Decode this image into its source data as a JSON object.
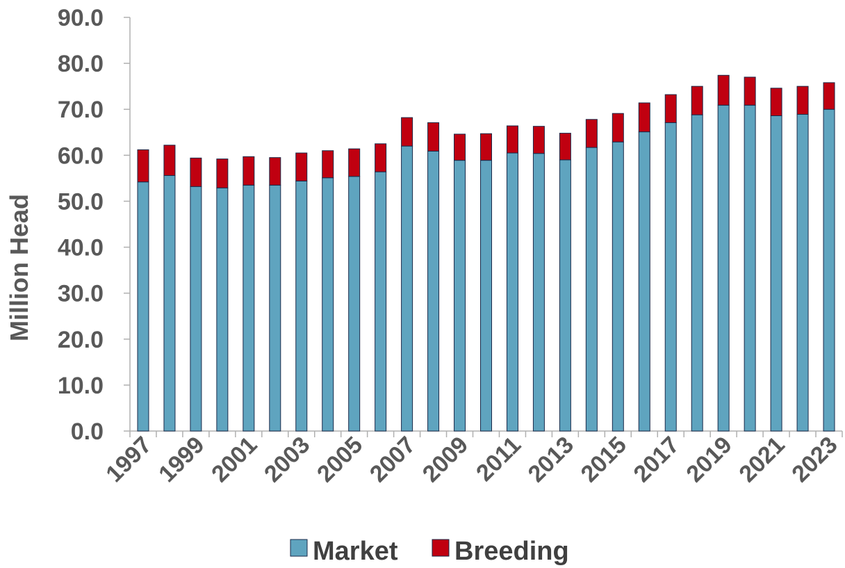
{
  "chart_data": {
    "type": "bar",
    "stacked": true,
    "ylabel": "Million Head",
    "xlabel": "",
    "ylim": [
      0,
      90
    ],
    "y_ticks": [
      "0.0",
      "10.0",
      "20.0",
      "30.0",
      "40.0",
      "50.0",
      "60.0",
      "70.0",
      "80.0",
      "90.0"
    ],
    "x_tick_labels": [
      "1997",
      "1999",
      "2001",
      "2003",
      "2005",
      "2007",
      "2009",
      "2011",
      "2013",
      "2015",
      "2017",
      "2019",
      "2021",
      "2023"
    ],
    "categories": [
      "1997",
      "1998",
      "1999",
      "2000",
      "2001",
      "2002",
      "2003",
      "2004",
      "2005",
      "2006",
      "2007",
      "2008",
      "2009",
      "2010",
      "2011",
      "2012",
      "2013",
      "2014",
      "2015",
      "2016",
      "2017",
      "2018",
      "2019",
      "2020",
      "2021",
      "2022",
      "2023"
    ],
    "series": [
      {
        "name": "Market",
        "color": "#5FA4BF",
        "values": [
          54.2,
          55.6,
          53.2,
          52.9,
          53.5,
          53.5,
          54.4,
          55.1,
          55.4,
          56.4,
          62.0,
          60.9,
          58.9,
          58.9,
          60.5,
          60.4,
          59.0,
          61.7,
          62.9,
          65.1,
          67.1,
          68.8,
          70.9,
          70.9,
          68.6,
          68.9,
          70.0
        ]
      },
      {
        "name": "Breeding",
        "color": "#C00010",
        "values": [
          7.0,
          6.6,
          6.2,
          6.3,
          6.2,
          6.0,
          6.1,
          5.9,
          6.0,
          6.1,
          6.2,
          6.2,
          5.7,
          5.8,
          5.9,
          5.9,
          5.8,
          6.1,
          6.2,
          6.3,
          6.1,
          6.2,
          6.5,
          6.1,
          6.0,
          6.1,
          5.8
        ]
      }
    ],
    "legend": {
      "position": "bottom",
      "items": [
        "Market",
        "Breeding"
      ]
    },
    "grid": false
  }
}
